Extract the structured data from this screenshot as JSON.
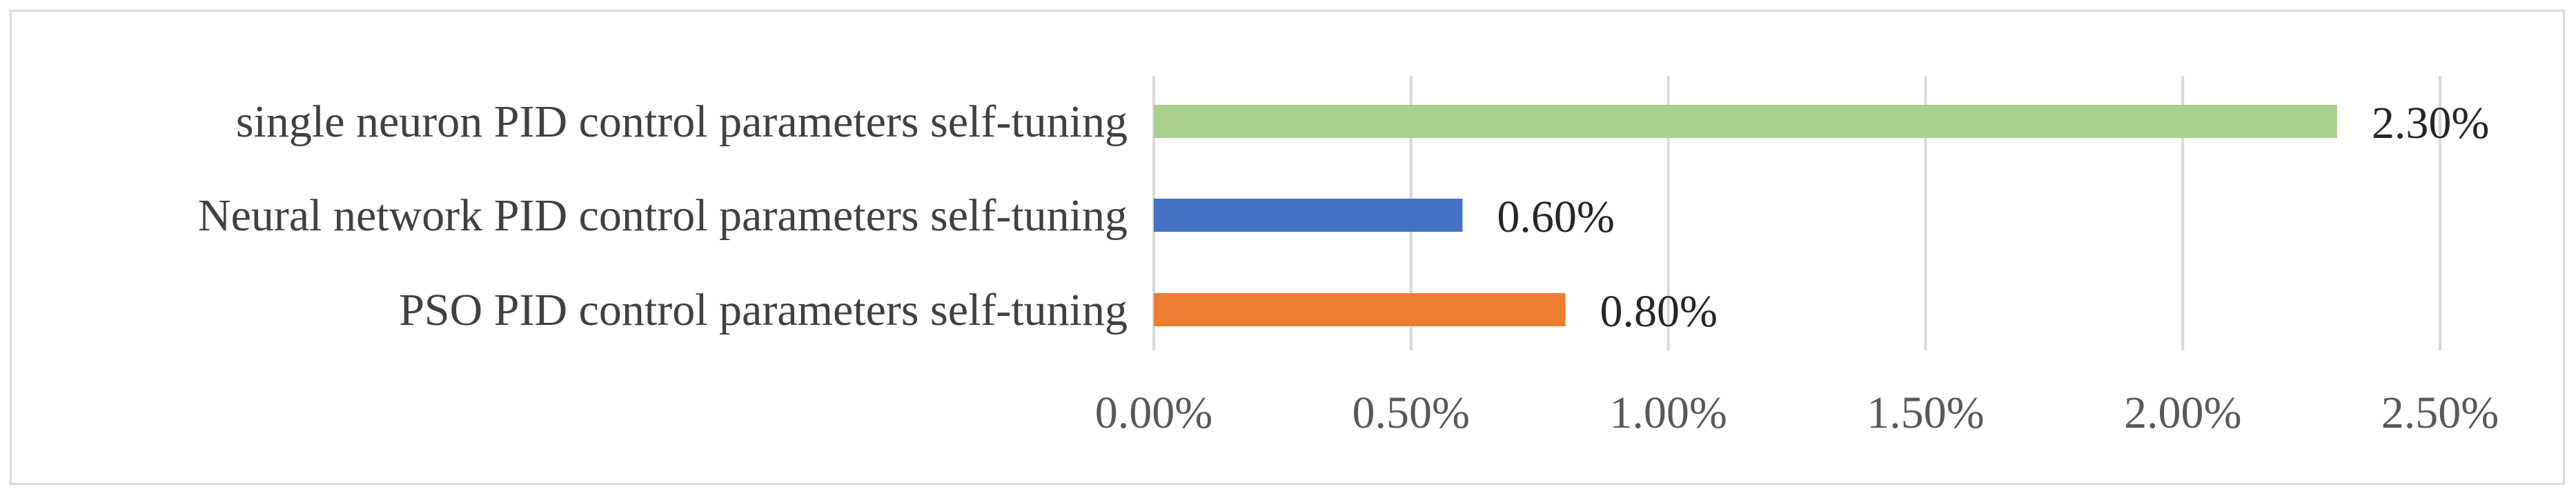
{
  "chart_data": {
    "type": "bar",
    "orientation": "horizontal",
    "categories": [
      "single neuron PID control parameters self-tuning",
      "Neural network PID control parameters self-tuning",
      "PSO PID control parameters self-tuning"
    ],
    "values": [
      2.3,
      0.6,
      0.8
    ],
    "value_labels": [
      "2.30%",
      "0.60%",
      "0.80%"
    ],
    "colors": [
      "#a9d18e",
      "#4472c4",
      "#ed7d31"
    ],
    "xlim": [
      0,
      2.5
    ],
    "x_ticks": [
      0,
      0.5,
      1.0,
      1.5,
      2.0,
      2.5
    ],
    "x_tick_labels": [
      "0.00%",
      "0.50%",
      "1.00%",
      "1.50%",
      "2.00%",
      "2.50%"
    ],
    "grid": true,
    "legend": "none",
    "title": "",
    "xlabel": "",
    "ylabel": ""
  }
}
